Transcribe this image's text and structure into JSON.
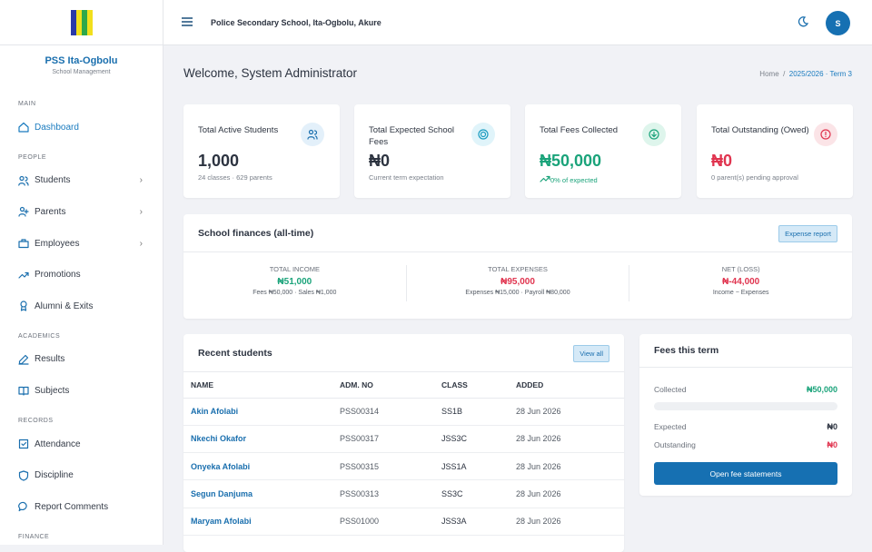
{
  "sidebar": {
    "school_name": "PSS Ita-Ogbolu",
    "school_subtitle": "School Management",
    "sections": [
      {
        "title": "MAIN",
        "items": [
          "Dashboard"
        ]
      },
      {
        "title": "PEOPLE",
        "items": [
          "Students",
          "Parents",
          "Employees",
          "Promotions",
          "Alumni & Exits"
        ]
      },
      {
        "title": "ACADEMICS",
        "items": [
          "Results",
          "Subjects"
        ]
      },
      {
        "title": "RECORDS",
        "items": [
          "Attendance",
          "Discipline",
          "Report Comments"
        ]
      },
      {
        "title": "FINANCE",
        "items": []
      }
    ]
  },
  "topbar": {
    "school": "Police Secondary School, Ita-Ogbolu, Akure",
    "avatar": "S"
  },
  "header": {
    "title": "Welcome, System Administrator",
    "breadcrumb": [
      "Home",
      "2025/2026 · Term 3"
    ]
  },
  "stats": [
    {
      "label": "Total Active Students",
      "value": "1,000",
      "note": "24 classes · 629 parents"
    },
    {
      "label": "Total Expected School Fees",
      "value": "₦0",
      "note": "Current term expectation"
    },
    {
      "label": "Total Fees Collected",
      "value": "₦50,000",
      "note": "0% of expected"
    },
    {
      "label": "Total Outstanding (Owed)",
      "value": "₦0",
      "note": "0 parent(s) pending approval"
    }
  ],
  "finances": {
    "title": "School finances (all-time)",
    "button": "Expense report",
    "columns": [
      {
        "label": "TOTAL INCOME",
        "value": "₦51,000",
        "note": "Fees ₦50,000 · Sales ₦1,000"
      },
      {
        "label": "TOTAL EXPENSES",
        "value": "₦95,000",
        "note": "Expenses ₦15,000 · Payroll ₦80,000"
      },
      {
        "label": "NET (LOSS)",
        "value": "₦-44,000",
        "note": "Income − Expenses"
      }
    ]
  },
  "recent_students": {
    "title": "Recent students",
    "button": "View all",
    "columns": [
      "NAME",
      "ADM. NO",
      "CLASS",
      "ADDED"
    ],
    "rows": [
      [
        "Akin Afolabi",
        "PSS00314",
        "SS1B",
        "28 Jun 2026"
      ],
      [
        "Nkechi Okafor",
        "PSS00317",
        "JSS3C",
        "28 Jun 2026"
      ],
      [
        "Onyeka Afolabi",
        "PSS00315",
        "JSS1A",
        "28 Jun 2026"
      ],
      [
        "Segun Danjuma",
        "PSS00313",
        "SS3C",
        "28 Jun 2026"
      ],
      [
        "Maryam Afolabi",
        "PSS01000",
        "JSS3A",
        "28 Jun 2026"
      ]
    ]
  },
  "fees_term": {
    "title": "Fees this term",
    "rows": [
      {
        "label": "Collected",
        "value": "₦50,000"
      },
      {
        "label": "Expected",
        "value": "₦0"
      },
      {
        "label": "Outstanding",
        "value": "₦0"
      }
    ],
    "button": "Open fee statements"
  }
}
